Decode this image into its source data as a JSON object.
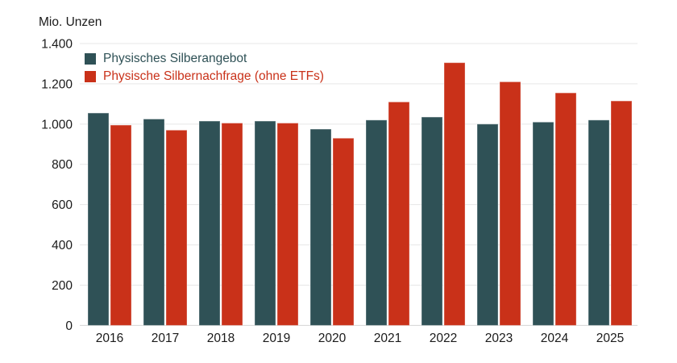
{
  "header": {
    "unit_label": "Mio. Unzen"
  },
  "colors": {
    "background": "#ffffff",
    "text": "#1a1a1a",
    "gridline": "#e7e7e7",
    "axis_line": "#d4d4d4",
    "supply": "#2f5156",
    "demand": "#c93119"
  },
  "chart_data": {
    "type": "bar",
    "title": "",
    "unit_label": "Mio. Unzen",
    "xlabel": "",
    "ylabel": "Mio. Unzen",
    "categories": [
      "2016",
      "2017",
      "2018",
      "2019",
      "2020",
      "2021",
      "2022",
      "2023",
      "2024",
      "2025"
    ],
    "series": [
      {
        "name": "Physisches Silberangebot",
        "color": "#2f5156",
        "values": [
          1055,
          1025,
          1015,
          1015,
          975,
          1020,
          1035,
          1000,
          1010,
          1020
        ]
      },
      {
        "name": "Physische Silbernachfrage (ohne ETFs)",
        "color": "#c93119",
        "values": [
          995,
          970,
          1005,
          1005,
          930,
          1110,
          1305,
          1210,
          1155,
          1115
        ]
      }
    ],
    "ylim": [
      0,
      1400
    ],
    "y_ticks": [
      0,
      200,
      400,
      600,
      800,
      1000,
      1200,
      1400
    ],
    "y_tick_labels": [
      "0",
      "200",
      "400",
      "600",
      "800",
      "1.000",
      "1.200",
      "1.400"
    ],
    "grid": "horizontal",
    "legend_position": "top-left-inside"
  }
}
